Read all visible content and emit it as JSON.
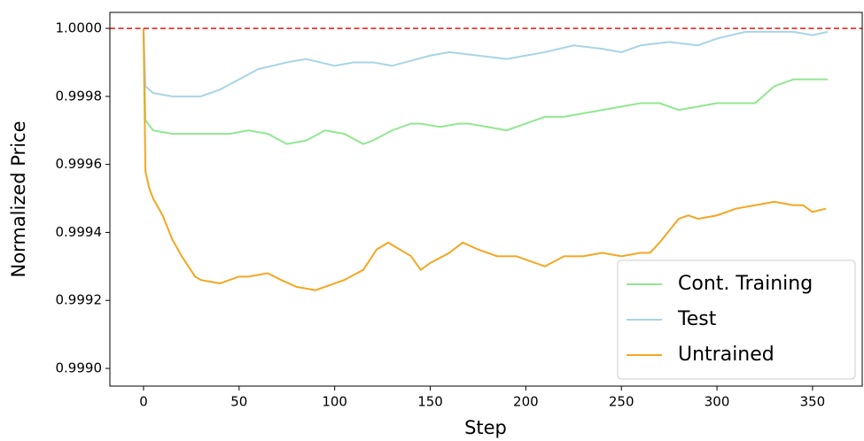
{
  "chart_data": {
    "type": "line",
    "xlabel": "Step",
    "ylabel": "Normalized Price",
    "xlim": [
      -17.6,
      376
    ],
    "ylim": [
      0.998948,
      1.000047
    ],
    "xticks": [
      0,
      50,
      100,
      150,
      200,
      250,
      300,
      350
    ],
    "yticks": [
      {
        "value": 0.999,
        "label": "0.9990"
      },
      0.9992,
      0.9994,
      0.9996,
      0.9998,
      {
        "value": 1,
        "label": "1.0000"
      }
    ],
    "hline": {
      "value": 1,
      "color": "#e8261f"
    },
    "legend": "lower right",
    "series": [
      {
        "name": "Cont. Training",
        "color": "#90e890",
        "x": [
          0,
          1,
          5,
          15,
          25,
          35,
          45,
          55,
          65,
          75,
          85,
          95,
          105,
          115,
          120,
          130,
          140,
          145,
          155,
          165,
          170,
          180,
          190,
          200,
          210,
          220,
          230,
          240,
          250,
          260,
          270,
          280,
          290,
          300,
          310,
          320,
          330,
          340,
          350,
          358
        ],
        "values": [
          1.0,
          0.99973,
          0.9997,
          0.99969,
          0.99969,
          0.99969,
          0.99969,
          0.9997,
          0.99969,
          0.99966,
          0.99967,
          0.9997,
          0.99969,
          0.99966,
          0.99967,
          0.9997,
          0.99972,
          0.99972,
          0.99971,
          0.99972,
          0.99972,
          0.99971,
          0.9997,
          0.99972,
          0.99974,
          0.99974,
          0.99975,
          0.99976,
          0.99977,
          0.99978,
          0.99978,
          0.99976,
          0.99977,
          0.99978,
          0.99978,
          0.99978,
          0.99983,
          0.99985,
          0.99985,
          0.99985
        ]
      },
      {
        "name": "Test",
        "color": "#a8d4e6",
        "x": [
          0,
          1,
          5,
          15,
          30,
          40,
          50,
          60,
          75,
          85,
          100,
          110,
          120,
          130,
          150,
          160,
          175,
          190,
          200,
          210,
          225,
          240,
          250,
          260,
          275,
          290,
          300,
          315,
          330,
          340,
          350,
          358
        ],
        "values": [
          1.0,
          0.99983,
          0.99981,
          0.9998,
          0.9998,
          0.99982,
          0.99985,
          0.99988,
          0.9999,
          0.99991,
          0.99989,
          0.9999,
          0.9999,
          0.99989,
          0.99992,
          0.99993,
          0.99992,
          0.99991,
          0.99992,
          0.99993,
          0.99995,
          0.99994,
          0.99993,
          0.99995,
          0.99996,
          0.99995,
          0.99997,
          0.99999,
          0.99999,
          0.99999,
          0.99998,
          0.99999
        ]
      },
      {
        "name": "Untrained",
        "color": "#f5a623",
        "x": [
          0,
          1,
          3,
          5,
          10,
          15,
          20,
          27,
          30,
          40,
          50,
          55,
          65,
          72,
          80,
          90,
          100,
          105,
          115,
          122,
          128,
          140,
          145,
          150,
          160,
          167,
          175,
          185,
          195,
          200,
          210,
          220,
          230,
          240,
          250,
          260,
          265,
          270,
          280,
          285,
          290,
          300,
          310,
          320,
          330,
          340,
          345,
          350,
          357
        ],
        "values": [
          1.0,
          0.99958,
          0.99953,
          0.9995,
          0.99945,
          0.99938,
          0.99933,
          0.99927,
          0.99926,
          0.99925,
          0.99927,
          0.99927,
          0.99928,
          0.99926,
          0.99924,
          0.99923,
          0.99925,
          0.99926,
          0.99929,
          0.99935,
          0.99937,
          0.99933,
          0.99929,
          0.99931,
          0.99934,
          0.99937,
          0.99935,
          0.99933,
          0.99933,
          0.99932,
          0.9993,
          0.99933,
          0.99933,
          0.99934,
          0.99933,
          0.99934,
          0.99934,
          0.99937,
          0.99944,
          0.99945,
          0.99944,
          0.99945,
          0.99947,
          0.99948,
          0.99949,
          0.99948,
          0.99948,
          0.99946,
          0.99947
        ]
      }
    ]
  }
}
